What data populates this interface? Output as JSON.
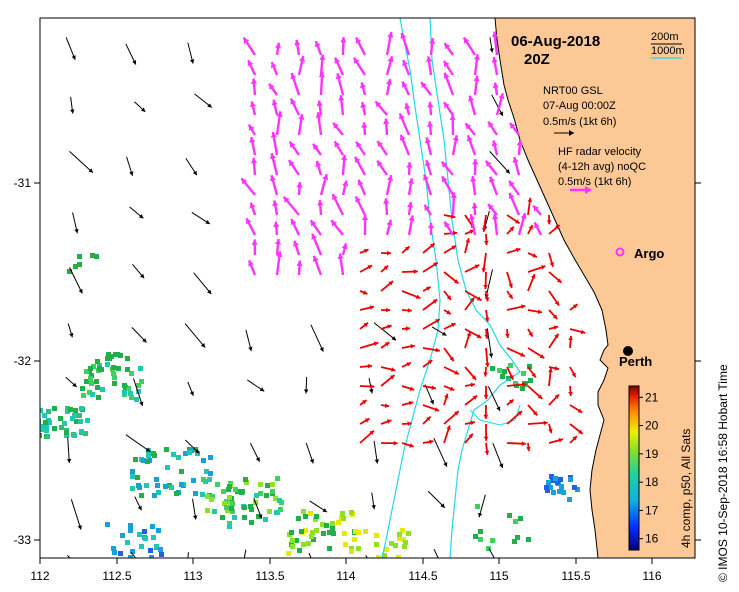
{
  "title": {
    "date": "06-Aug-2018",
    "time": "20Z"
  },
  "scale": {
    "label_200m": "200m",
    "label_1000m": "1000m"
  },
  "legend": {
    "model_name": "NRT00 GSL",
    "model_time": "07-Aug 00:00Z",
    "model_scale": "0.5m/s (1kt 6h)",
    "hf_line1": "HF radar velocity",
    "hf_line2": "(4-12h avg) noQC",
    "hf_scale": "0.5m/s (1kt 6h)"
  },
  "markers": {
    "argo": "Argo",
    "perth": "Perth"
  },
  "axes": {
    "x_ticks": [
      "112",
      "112.5",
      "113",
      "113.5",
      "114",
      "114.5",
      "115",
      "115.5",
      "116"
    ],
    "y_ticks": [
      "-31",
      "-32",
      "-33"
    ]
  },
  "colorbar": {
    "label": "4h comp, p50, All Sats",
    "ticks": [
      "21",
      "20",
      "19",
      "18",
      "17",
      "16"
    ],
    "range": [
      15.6,
      21.4
    ]
  },
  "credit": "© IMOS 10-Sep-2018 16:58 Hobart Time",
  "colors": {
    "land": "#fcc896",
    "isobath": "#22d8e8",
    "hf_arrow": "#ff33ff",
    "model_arrow_red": "#ee0000",
    "model_arrow_black": "#000000"
  }
}
